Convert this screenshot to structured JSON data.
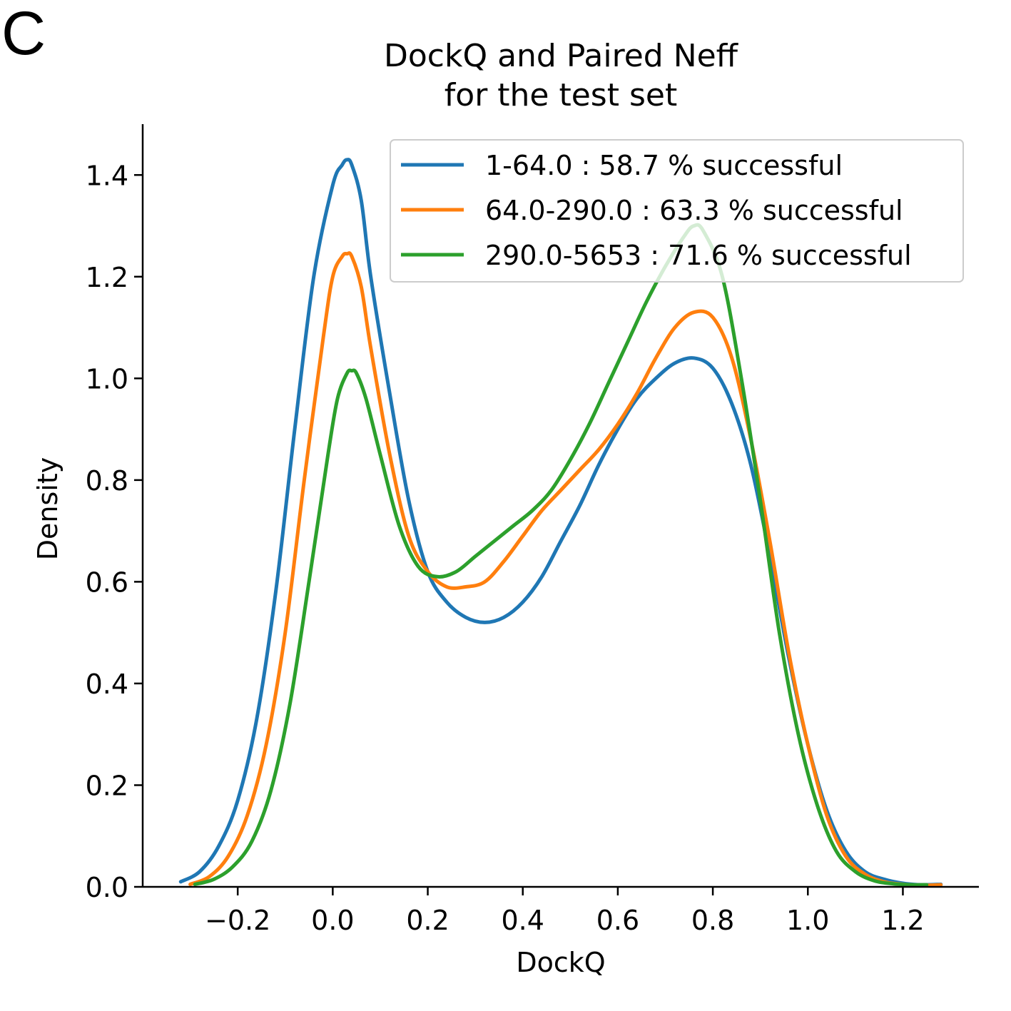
{
  "panel_label": "C",
  "chart_data": {
    "type": "line",
    "title": "DockQ and Paired Neff",
    "subtitle": "for the test set",
    "xlabel": "DockQ",
    "ylabel": "Density",
    "xlim": [
      -0.4,
      1.36
    ],
    "ylim": [
      0,
      1.5
    ],
    "x_ticks": [
      -0.2,
      0.0,
      0.2,
      0.4,
      0.6,
      0.8,
      1.0,
      1.2
    ],
    "x_tick_labels": [
      "−0.2",
      "0.0",
      "0.2",
      "0.4",
      "0.6",
      "0.8",
      "1.0",
      "1.2"
    ],
    "y_ticks": [
      0.0,
      0.2,
      0.4,
      0.6,
      0.8,
      1.0,
      1.2,
      1.4
    ],
    "y_tick_labels": [
      "0.0",
      "0.2",
      "0.4",
      "0.6",
      "0.8",
      "1.0",
      "1.2",
      "1.4"
    ],
    "grid": false,
    "legend_position": "top-right",
    "series": [
      {
        "name": "1-64.0 : 58.7 % successful",
        "color": "#1f77b4",
        "x": [
          -0.32,
          -0.28,
          -0.24,
          -0.2,
          -0.16,
          -0.12,
          -0.08,
          -0.04,
          0.0,
          0.02,
          0.03,
          0.04,
          0.06,
          0.08,
          0.12,
          0.16,
          0.2,
          0.24,
          0.28,
          0.32,
          0.36,
          0.4,
          0.44,
          0.48,
          0.52,
          0.56,
          0.6,
          0.64,
          0.68,
          0.72,
          0.76,
          0.8,
          0.84,
          0.88,
          0.92,
          0.96,
          1.0,
          1.04,
          1.08,
          1.12,
          1.16,
          1.2,
          1.24,
          1.28
        ],
        "y": [
          0.01,
          0.03,
          0.08,
          0.17,
          0.33,
          0.58,
          0.9,
          1.2,
          1.38,
          1.42,
          1.43,
          1.42,
          1.35,
          1.2,
          0.97,
          0.76,
          0.62,
          0.56,
          0.53,
          0.52,
          0.53,
          0.56,
          0.61,
          0.68,
          0.75,
          0.83,
          0.9,
          0.96,
          1.0,
          1.03,
          1.04,
          1.02,
          0.95,
          0.83,
          0.65,
          0.45,
          0.28,
          0.15,
          0.07,
          0.03,
          0.015,
          0.007,
          0.004,
          0.005
        ]
      },
      {
        "name": "64.0-290.0 : 63.3 % successful",
        "color": "#ff7f0e",
        "x": [
          -0.3,
          -0.26,
          -0.22,
          -0.18,
          -0.14,
          -0.1,
          -0.06,
          -0.02,
          0.0,
          0.02,
          0.03,
          0.04,
          0.06,
          0.08,
          0.12,
          0.16,
          0.2,
          0.24,
          0.28,
          0.32,
          0.36,
          0.4,
          0.44,
          0.48,
          0.52,
          0.56,
          0.6,
          0.64,
          0.68,
          0.72,
          0.76,
          0.8,
          0.84,
          0.88,
          0.92,
          0.96,
          1.0,
          1.04,
          1.08,
          1.12,
          1.16,
          1.2,
          1.24,
          1.28
        ],
        "y": [
          0.005,
          0.02,
          0.06,
          0.14,
          0.28,
          0.5,
          0.8,
          1.08,
          1.2,
          1.24,
          1.245,
          1.24,
          1.18,
          1.06,
          0.85,
          0.69,
          0.62,
          0.59,
          0.59,
          0.6,
          0.64,
          0.69,
          0.74,
          0.78,
          0.82,
          0.86,
          0.91,
          0.97,
          1.04,
          1.1,
          1.13,
          1.12,
          1.04,
          0.88,
          0.68,
          0.46,
          0.28,
          0.14,
          0.06,
          0.025,
          0.01,
          0.005,
          0.003,
          0.004
        ]
      },
      {
        "name": "290.0-5653 : 71.6 % successful",
        "color": "#2ca02c",
        "x": [
          -0.29,
          -0.25,
          -0.21,
          -0.17,
          -0.13,
          -0.09,
          -0.05,
          -0.01,
          0.01,
          0.03,
          0.04,
          0.05,
          0.07,
          0.1,
          0.14,
          0.18,
          0.22,
          0.26,
          0.3,
          0.34,
          0.38,
          0.42,
          0.46,
          0.5,
          0.54,
          0.58,
          0.62,
          0.66,
          0.7,
          0.74,
          0.76,
          0.78,
          0.82,
          0.86,
          0.9,
          0.94,
          0.98,
          1.02,
          1.06,
          1.1,
          1.14,
          1.18,
          1.22,
          1.25
        ],
        "y": [
          0.005,
          0.015,
          0.04,
          0.09,
          0.19,
          0.36,
          0.6,
          0.85,
          0.96,
          1.01,
          1.015,
          1.01,
          0.96,
          0.85,
          0.71,
          0.63,
          0.61,
          0.62,
          0.65,
          0.68,
          0.71,
          0.74,
          0.78,
          0.84,
          0.91,
          0.99,
          1.07,
          1.15,
          1.22,
          1.28,
          1.3,
          1.29,
          1.2,
          1.0,
          0.76,
          0.5,
          0.3,
          0.16,
          0.07,
          0.03,
          0.012,
          0.006,
          0.004,
          0.004
        ]
      }
    ]
  }
}
